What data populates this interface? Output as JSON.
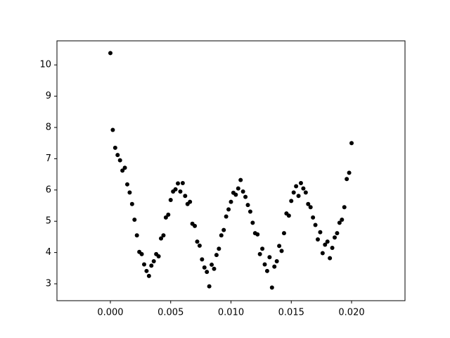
{
  "chart_data": {
    "type": "scatter",
    "color": "#000000",
    "x": [
      0,
      0.0002,
      0.0004,
      0.0006,
      0.0008,
      0.001,
      0.0012,
      0.0014,
      0.0016,
      0.0018,
      0.002,
      0.0022,
      0.0024,
      0.0026,
      0.0028,
      0.003,
      0.0032,
      0.0034,
      0.0036,
      0.0038,
      0.004,
      0.0042,
      0.0044,
      0.0046,
      0.0048,
      0.005,
      0.0052,
      0.0054,
      0.0056,
      0.0058,
      0.006,
      0.0062,
      0.0064,
      0.0066,
      0.0068,
      0.007,
      0.0072,
      0.0074,
      0.0076,
      0.0078,
      0.008,
      0.0082,
      0.0084,
      0.0086,
      0.0088,
      0.009,
      0.0092,
      0.0094,
      0.0096,
      0.0098,
      0.01,
      0.0102,
      0.0104,
      0.0106,
      0.0108,
      0.011,
      0.0112,
      0.0114,
      0.0116,
      0.0118,
      0.012,
      0.0122,
      0.0124,
      0.0126,
      0.0128,
      0.013,
      0.0132,
      0.0134,
      0.0136,
      0.0138,
      0.014,
      0.0142,
      0.0144,
      0.0146,
      0.0148,
      0.015,
      0.0152,
      0.0154,
      0.0156,
      0.0158,
      0.016,
      0.0162,
      0.0164,
      0.0166,
      0.0168,
      0.017,
      0.0172,
      0.0174,
      0.0176,
      0.0178,
      0.018,
      0.0182,
      0.0184,
      0.0186,
      0.0188,
      0.019,
      0.0192,
      0.0194,
      0.0196,
      0.0198,
      0.02
    ],
    "values": [
      10.38,
      7.92,
      7.35,
      7.12,
      6.95,
      6.62,
      6.71,
      6.18,
      5.92,
      5.55,
      5.05,
      4.55,
      4.02,
      3.95,
      3.62,
      3.41,
      3.25,
      3.58,
      3.72,
      3.95,
      3.88,
      4.45,
      4.55,
      5.12,
      5.21,
      5.68,
      5.95,
      6.02,
      6.21,
      5.95,
      6.22,
      5.81,
      5.55,
      5.62,
      4.92,
      4.85,
      4.35,
      4.22,
      3.78,
      3.52,
      3.38,
      2.92,
      3.61,
      3.48,
      3.92,
      4.12,
      4.55,
      4.72,
      5.15,
      5.38,
      5.62,
      5.91,
      5.85,
      6.05,
      6.32,
      5.95,
      5.78,
      5.52,
      5.31,
      4.95,
      4.62,
      4.58,
      3.95,
      4.12,
      3.62,
      3.41,
      3.85,
      2.88,
      3.55,
      3.72,
      4.21,
      4.05,
      4.62,
      5.25,
      5.18,
      5.65,
      5.92,
      6.12,
      5.81,
      6.22,
      6.05,
      5.92,
      5.55,
      5.45,
      5.12,
      4.88,
      4.42,
      4.65,
      3.98,
      4.25,
      4.35,
      3.82,
      4.15,
      4.48,
      4.62,
      4.95,
      5.05,
      5.45,
      6.35,
      6.55,
      7.5
    ],
    "xlim": [
      -0.00443,
      0.02443
    ],
    "ylim": [
      2.46,
      10.77
    ],
    "xticks": [
      {
        "value": 0,
        "label": "0.000"
      },
      {
        "value": 0.005,
        "label": "0.005"
      },
      {
        "value": 0.01,
        "label": "0.010"
      },
      {
        "value": 0.015,
        "label": "0.015"
      },
      {
        "value": 0.02,
        "label": "0.020"
      }
    ],
    "yticks": [
      3,
      4,
      5,
      6,
      7,
      8,
      9,
      10
    ]
  }
}
